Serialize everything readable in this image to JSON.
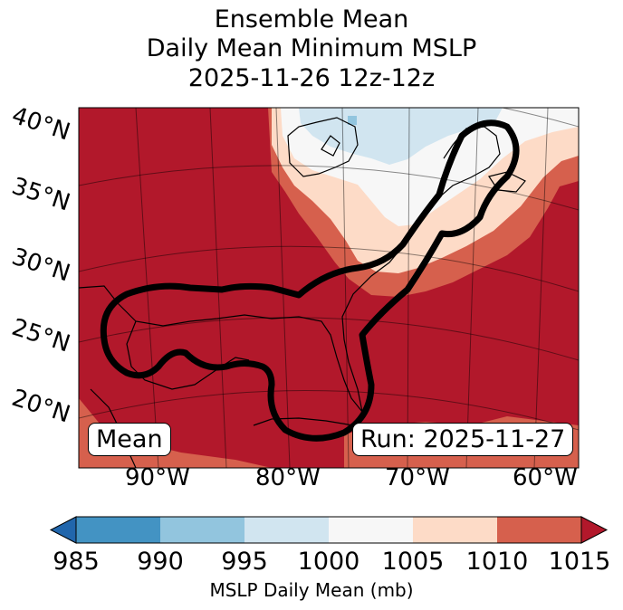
{
  "title": {
    "line1": "Ensemble Mean",
    "line2": "Daily Mean Minimum MSLP",
    "line3": "2025-11-26 12z-12z"
  },
  "map": {
    "lat_labels": [
      "40°N",
      "35°N",
      "30°N",
      "25°N",
      "20°N"
    ],
    "lon_labels": [
      "90°W",
      "80°W",
      "70°W",
      "60°W"
    ],
    "mean_label": "Mean",
    "run_label": "Run: 2025-11-27",
    "contour_color": "#000000"
  },
  "colorbar": {
    "title": "MSLP Daily Mean (mb)",
    "ticks": [
      "985",
      "990",
      "995",
      "1000",
      "1005",
      "1010",
      "1015"
    ],
    "colors": [
      "#2166ac",
      "#4393c3",
      "#92c5de",
      "#d1e5f0",
      "#f7f7f7",
      "#fddbc7",
      "#d6604d",
      "#b2182b"
    ]
  }
}
